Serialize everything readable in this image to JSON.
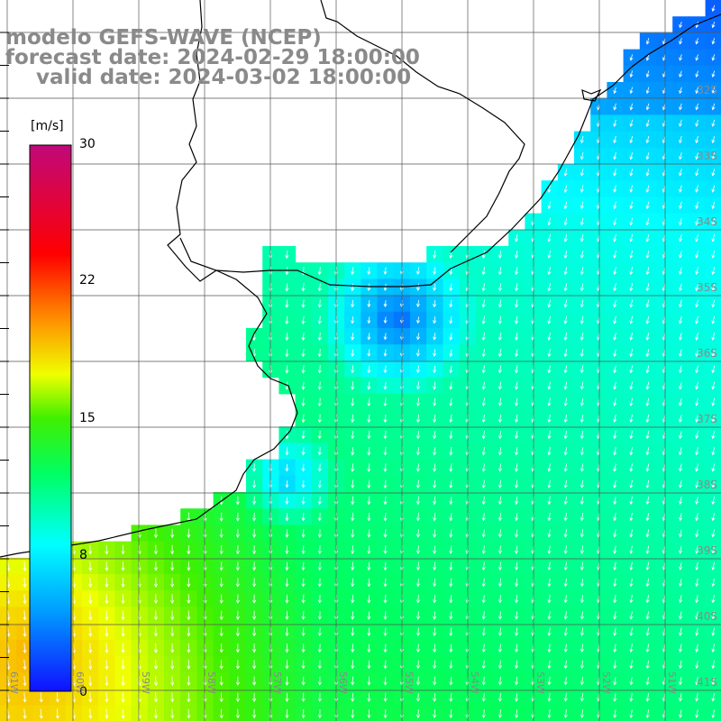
{
  "title": {
    "model": "modelo GEFS-WAVE (NCEP)",
    "forecast": "forecast date: 2024-02-29 18:00:00",
    "valid": "valid date: 2024-03-02 18:00:00"
  },
  "colorbar": {
    "units": "[m/s]",
    "ticks": [
      "30",
      "22",
      "15",
      "8",
      "0"
    ],
    "tick_values": [
      30,
      22,
      15,
      8,
      0
    ],
    "min": 0,
    "max": 30
  },
  "lat_labels": [
    "32S",
    "33S",
    "34S",
    "35S",
    "36S",
    "37S",
    "38S",
    "39S",
    "40S",
    "41S"
  ],
  "lon_labels": [
    "61W",
    "60W",
    "59W",
    "58W",
    "57W",
    "56W",
    "55W",
    "54W",
    "53W",
    "52W",
    "51W"
  ],
  "colors": {
    "land": "#ffffff",
    "grid": "#555555",
    "coast": "#000000",
    "arrow": "#ffffff",
    "title": "#8a8a8a"
  }
}
